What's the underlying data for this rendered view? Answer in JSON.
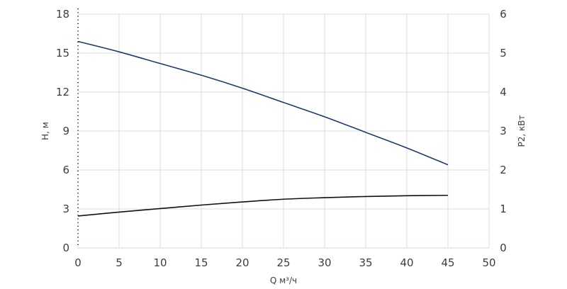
{
  "chart_data": {
    "type": "line",
    "xlabel": "Q м³/ч",
    "ylabel_left": "H, м",
    "ylabel_right": "P2, кВт",
    "xlim": [
      0,
      50
    ],
    "ylim_left": [
      0,
      18
    ],
    "ylim_right": [
      0,
      6
    ],
    "x_ticks": [
      0,
      5,
      10,
      15,
      20,
      25,
      30,
      35,
      40,
      45,
      50
    ],
    "y_left_ticks": [
      0,
      3,
      6,
      9,
      12,
      15,
      18
    ],
    "y_right_ticks": [
      0,
      1,
      2,
      3,
      4,
      5,
      6
    ],
    "grid": true,
    "series": [
      {
        "axis": "left",
        "color": "#1f3a6e",
        "x": [
          0,
          5,
          10,
          15,
          20,
          25,
          30,
          35,
          40,
          45
        ],
        "y": [
          15.9,
          15.1,
          14.2,
          13.3,
          12.3,
          11.2,
          10.1,
          8.9,
          7.7,
          6.4
        ]
      },
      {
        "axis": "right",
        "color": "#111111",
        "x": [
          0,
          5,
          10,
          15,
          20,
          25,
          30,
          35,
          40,
          45
        ],
        "y": [
          0.82,
          0.92,
          1.01,
          1.1,
          1.18,
          1.25,
          1.29,
          1.32,
          1.34,
          1.35
        ]
      }
    ]
  }
}
